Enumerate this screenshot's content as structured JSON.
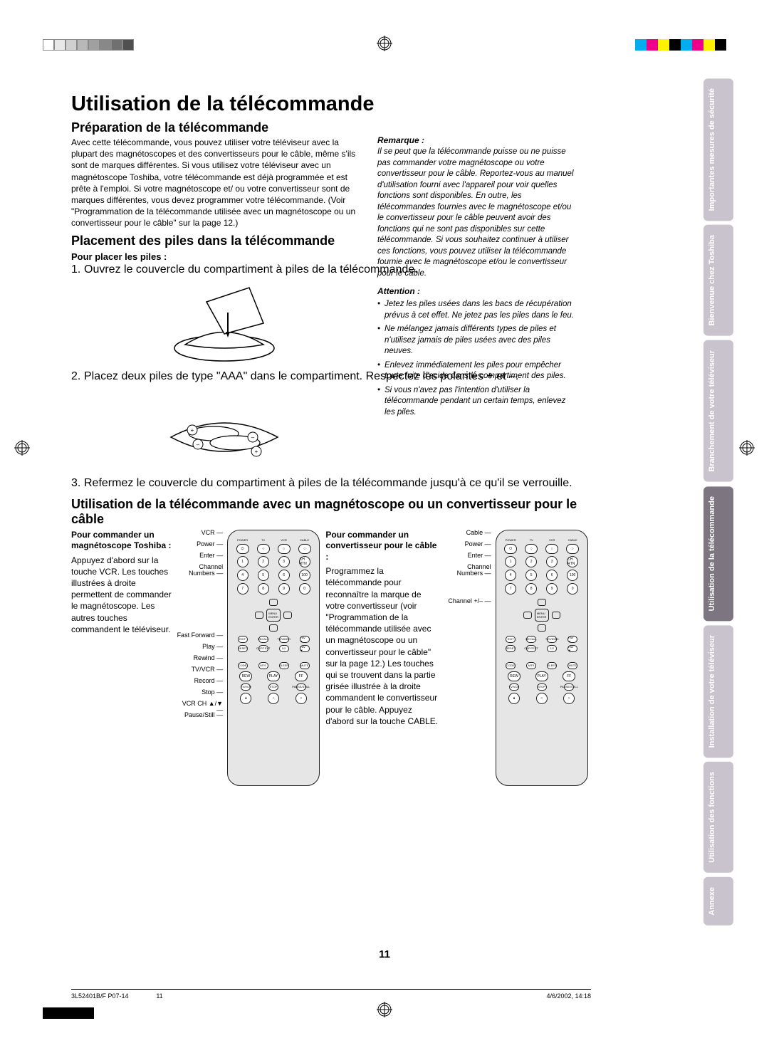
{
  "print_marks": {
    "gray_shades": [
      "#ffffff",
      "#e8e8e8",
      "#d0d0d0",
      "#b8b8b8",
      "#a0a0a0",
      "#888888",
      "#707070",
      "#505050"
    ],
    "cmyk_bars": [
      "#00aeef",
      "#ec008c",
      "#fff200",
      "#000000",
      "#00aeef",
      "#ec008c",
      "#fff200",
      "#000000"
    ]
  },
  "headings": {
    "h1": "Utilisation de la télécommande",
    "h2a": "Préparation de la télécommande",
    "h2b": "Placement des piles dans la télécommande",
    "h2c": "Utilisation de la télécommande avec un magnétoscope ou un convertisseur pour le câble",
    "h3a": "Pour placer les piles :"
  },
  "intro": "Avec cette télécommande, vous pouvez utiliser votre téléviseur avec la plupart des magnétoscopes et des convertisseurs pour le câble, même s'ils sont de marques différentes. Si vous utilisez votre téléviseur avec un magnétoscope Toshiba, votre télécommande est déjà programmée et est prête à l'emploi. Si votre magnétoscope et/ ou votre convertisseur sont de marques différentes, vous devez programmer votre télécommande. (Voir \"Programmation de la télécommande utilisée avec un magnétoscope ou un convertisseur pour le câble\" sur la page 12.)",
  "steps": {
    "s1": "Ouvrez le couvercle du compartiment à piles de la télécommande.",
    "s2": "Placez deux piles de type \"AAA\" dans le compartiment. Respectez les polarités + et –.",
    "s3": "Refermez le couvercle du compartiment à piles de la télécommande jusqu'à ce qu'il se verrouille."
  },
  "remark": {
    "title": "Remarque :",
    "body": "Il se peut que la télécommande puisse ou ne puisse pas commander votre magnétoscope ou votre convertisseur pour le câble. Reportez-vous au manuel d'utilisation fourni avec l'appareil pour voir quelles fonctions sont disponibles. En outre, les télécommandes fournies avec le magnétoscope et/ou le convertisseur pour le câble peuvent avoir des fonctions qui ne sont pas disponibles sur cette télécommande. Si vous souhaitez continuer à utiliser ces fonctions, vous pouvez utiliser la télécommande fournie avec le magnétoscope et/ou le convertisseur pour le câble."
  },
  "attention": {
    "title": "Attention :",
    "items": [
      "Jetez les piles usées dans les bacs de récupération prévus à cet effet. Ne jetez pas les piles dans le feu.",
      "Ne mélangez jamais différents types de piles et n'utilisez jamais de piles usées avec des piles neuves.",
      "Enlevez immédiatement les piles pour empêcher toute fuite d'acide dans le compartiment des piles.",
      "Si vous n'avez pas l'intention d'utiliser la télécommande pendant un certain temps, enlevez les piles."
    ]
  },
  "vcr_section": {
    "title": "Pour commander un magnétoscope Toshiba :",
    "body": "Appuyez d'abord sur la touche VCR. Les touches illustrées à droite permettent de commander le magnétoscope. Les autres touches commandent le téléviseur.",
    "labels": [
      "VCR",
      "Power",
      "Enter",
      "Channel Numbers",
      "",
      "",
      "",
      "",
      "",
      "Fast Forward",
      "Play",
      "Rewind",
      "TV/VCR",
      "Record",
      "Stop",
      "VCR CH ▲/▼",
      "Pause/Still"
    ]
  },
  "cable_section": {
    "title": "Pour commander un convertisseur pour le câble :",
    "body": "Programmez la télécommande pour reconnaître la marque de votre convertisseur (voir \"Programmation de la télécommande utilisée avec un magnétoscope ou un convertisseur pour le câble\" sur la page 12.) Les touches qui se trouvent dans la partie grisée illustrée à la droite commandent le convertisseur pour le câble. Appuyez d'abord sur la touche CABLE.",
    "labels": [
      "Cable",
      "Power",
      "Enter",
      "Channel Numbers",
      "",
      "",
      "Channel +/–"
    ]
  },
  "remote_buttons": {
    "top_labels": [
      "POWER",
      "TV",
      "VCR",
      "CABLE"
    ],
    "row2": [
      "1",
      "2",
      "3",
      "CH RTN"
    ],
    "row3": [
      "4",
      "5",
      "6",
      "100"
    ],
    "row4": [
      "7",
      "8",
      "9",
      "0"
    ],
    "mid": [
      "CH +",
      "VOL–",
      "MENU ENTER",
      "VOL+",
      "CH –"
    ],
    "row5": [
      "EXIT",
      "RECALL",
      "TV/VIDEO",
      "FAV ▲"
    ],
    "row6": [
      "RESET",
      "CAP/TEXT",
      "1/2",
      "FAV ▼"
    ],
    "row7": [
      "CODE",
      "MTS",
      "SLEEP",
      "MUTE"
    ],
    "row8": [
      "REW",
      "PLAY",
      "FF"
    ],
    "row9": [
      "TV/VCR",
      "STOP",
      "PAUSE/STILL"
    ],
    "row10": [
      "REC",
      "▲ VCR CH ▼"
    ]
  },
  "side_tabs": [
    {
      "label": "Importantes mesures de sécurité",
      "shade": "light"
    },
    {
      "label": "Bienvenue chez Toshiba",
      "shade": "light"
    },
    {
      "label": "Branchement de votre téléviseur",
      "shade": "light"
    },
    {
      "label": "Utilisation de la télécommande",
      "shade": "dark"
    },
    {
      "label": "Installation de votre téléviseur",
      "shade": "light"
    },
    {
      "label": "Utilisation des fonctions",
      "shade": "light"
    },
    {
      "label": "Annexe",
      "shade": "light"
    }
  ],
  "page_number": "11",
  "footer": {
    "left": "3L52401B/F P07-14",
    "mid": "11",
    "right": "4/6/2002, 14:18"
  }
}
